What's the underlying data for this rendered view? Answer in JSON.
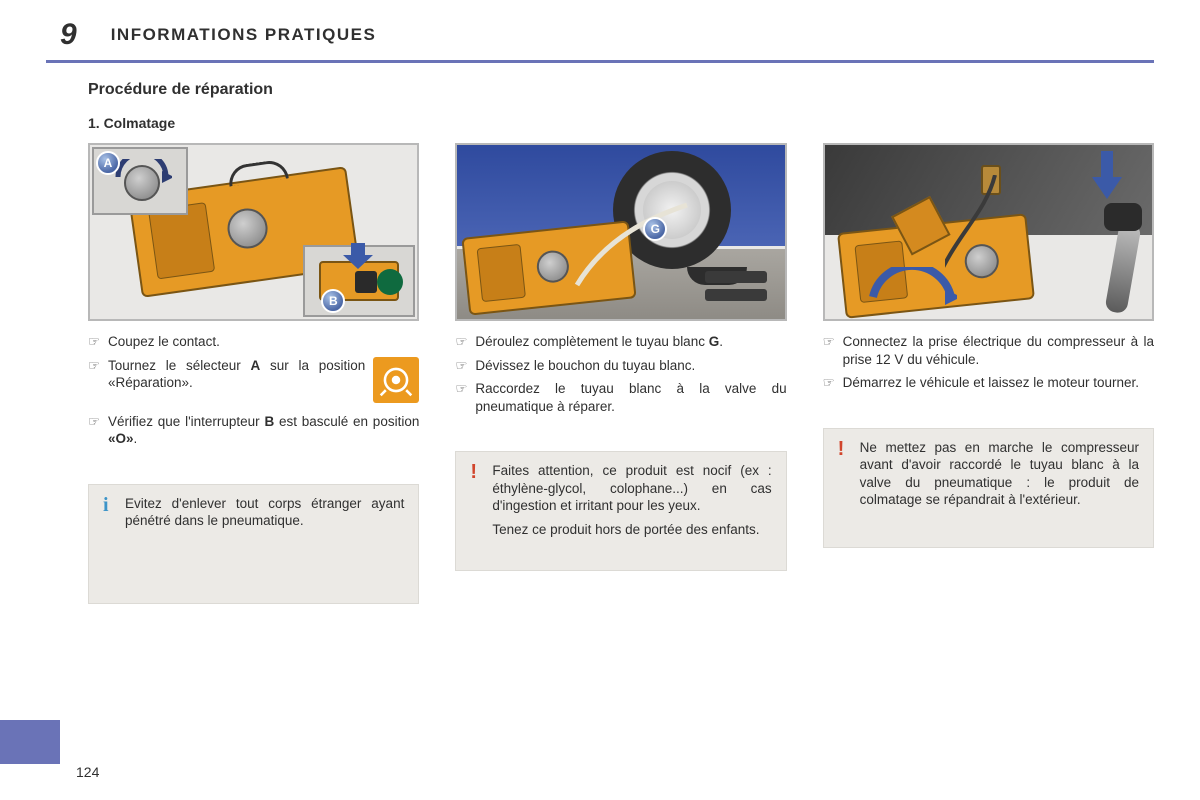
{
  "chapter": {
    "num": "9",
    "title": "INFORMATIONS PRATIQUES"
  },
  "section_title": "Procédure de réparation",
  "subsection": "1. Colmatage",
  "columns": [
    {
      "steps": [
        "Coupez le contact.",
        "Tournez le sélecteur <b>A</b> sur la position «Réparation».",
        "Vérifiez que l'interrupteur <b>B</b> est basculé en position <b>«O»</b>."
      ],
      "note": {
        "type": "info",
        "mark": "i",
        "paragraphs": [
          "Evitez d'enlever tout corps étranger ayant pénétré dans le pneumatique."
        ]
      },
      "has_icon": true,
      "badges": {
        "A": "A",
        "B": "B"
      }
    },
    {
      "steps": [
        "Déroulez complètement le tuyau blanc <b>G</b>.",
        "Dévissez le bouchon du tuyau blanc.",
        "Raccordez le tuyau blanc à la valve du pneumatique à réparer."
      ],
      "note": {
        "type": "warn",
        "mark": "!",
        "paragraphs": [
          "Faites attention, ce produit est nocif (ex : éthylène-glycol, colophane...) en cas d'ingestion et irritant pour les yeux.",
          "Tenez ce produit hors de portée des enfants."
        ]
      },
      "badges": {
        "G": "G"
      }
    },
    {
      "steps": [
        "Connectez la prise électrique du compresseur à la prise 12 V du véhicule.",
        "Démarrez le véhicule et laissez le moteur tourner."
      ],
      "note": {
        "type": "warn",
        "mark": "!",
        "paragraphs": [
          "Ne mettez pas en marche le compresseur avant d'avoir raccordé le tuyau blanc à la valve du pneumatique : le produit de colmatage se répandrait à l'extérieur."
        ]
      }
    }
  ],
  "page_number": "124",
  "colors": {
    "accent": "#6a73b7",
    "orange": "#e69a25",
    "note_bg": "#eceae6",
    "info_mark": "#3d94c8",
    "warn_mark": "#d1452c"
  }
}
